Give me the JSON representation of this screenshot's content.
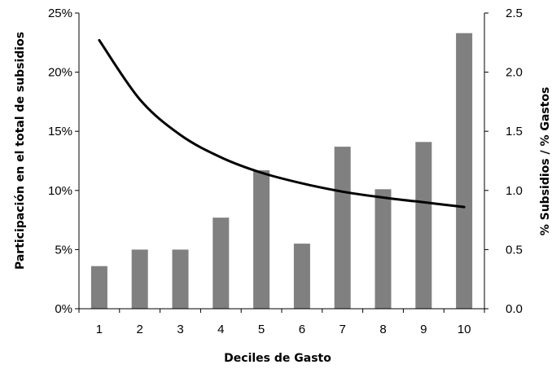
{
  "chart_data": {
    "type": "bar",
    "categories": [
      "1",
      "2",
      "3",
      "4",
      "5",
      "6",
      "7",
      "8",
      "9",
      "10"
    ],
    "xlabel": "Deciles de Gasto",
    "ylabel_left": "Participación en el total de subsidios",
    "ylabel_right": "% Subsidios / % Gastos",
    "left_axis": {
      "ylim": [
        0,
        25
      ],
      "ticks": [
        0,
        5,
        10,
        15,
        20,
        25
      ],
      "tick_labels": [
        "0%",
        "5%",
        "10%",
        "15%",
        "20%",
        "25%"
      ]
    },
    "right_axis": {
      "ylim": [
        0,
        2.5
      ],
      "ticks": [
        0,
        0.5,
        1.0,
        1.5,
        2.0,
        2.5
      ],
      "tick_labels": [
        "0.0",
        "0.5",
        "1.0",
        "1.5",
        "2.0",
        "2.5"
      ]
    },
    "series": [
      {
        "type": "bar",
        "axis": "left",
        "color": "#808080",
        "values": [
          3.6,
          5.0,
          5.0,
          7.7,
          11.7,
          5.5,
          13.7,
          10.1,
          14.1,
          23.3
        ]
      },
      {
        "type": "line",
        "axis": "right",
        "color": "#000000",
        "values": [
          2.27,
          1.77,
          1.47,
          1.28,
          1.15,
          1.06,
          0.99,
          0.94,
          0.9,
          0.86
        ]
      }
    ],
    "grid": false,
    "legend": "none"
  }
}
